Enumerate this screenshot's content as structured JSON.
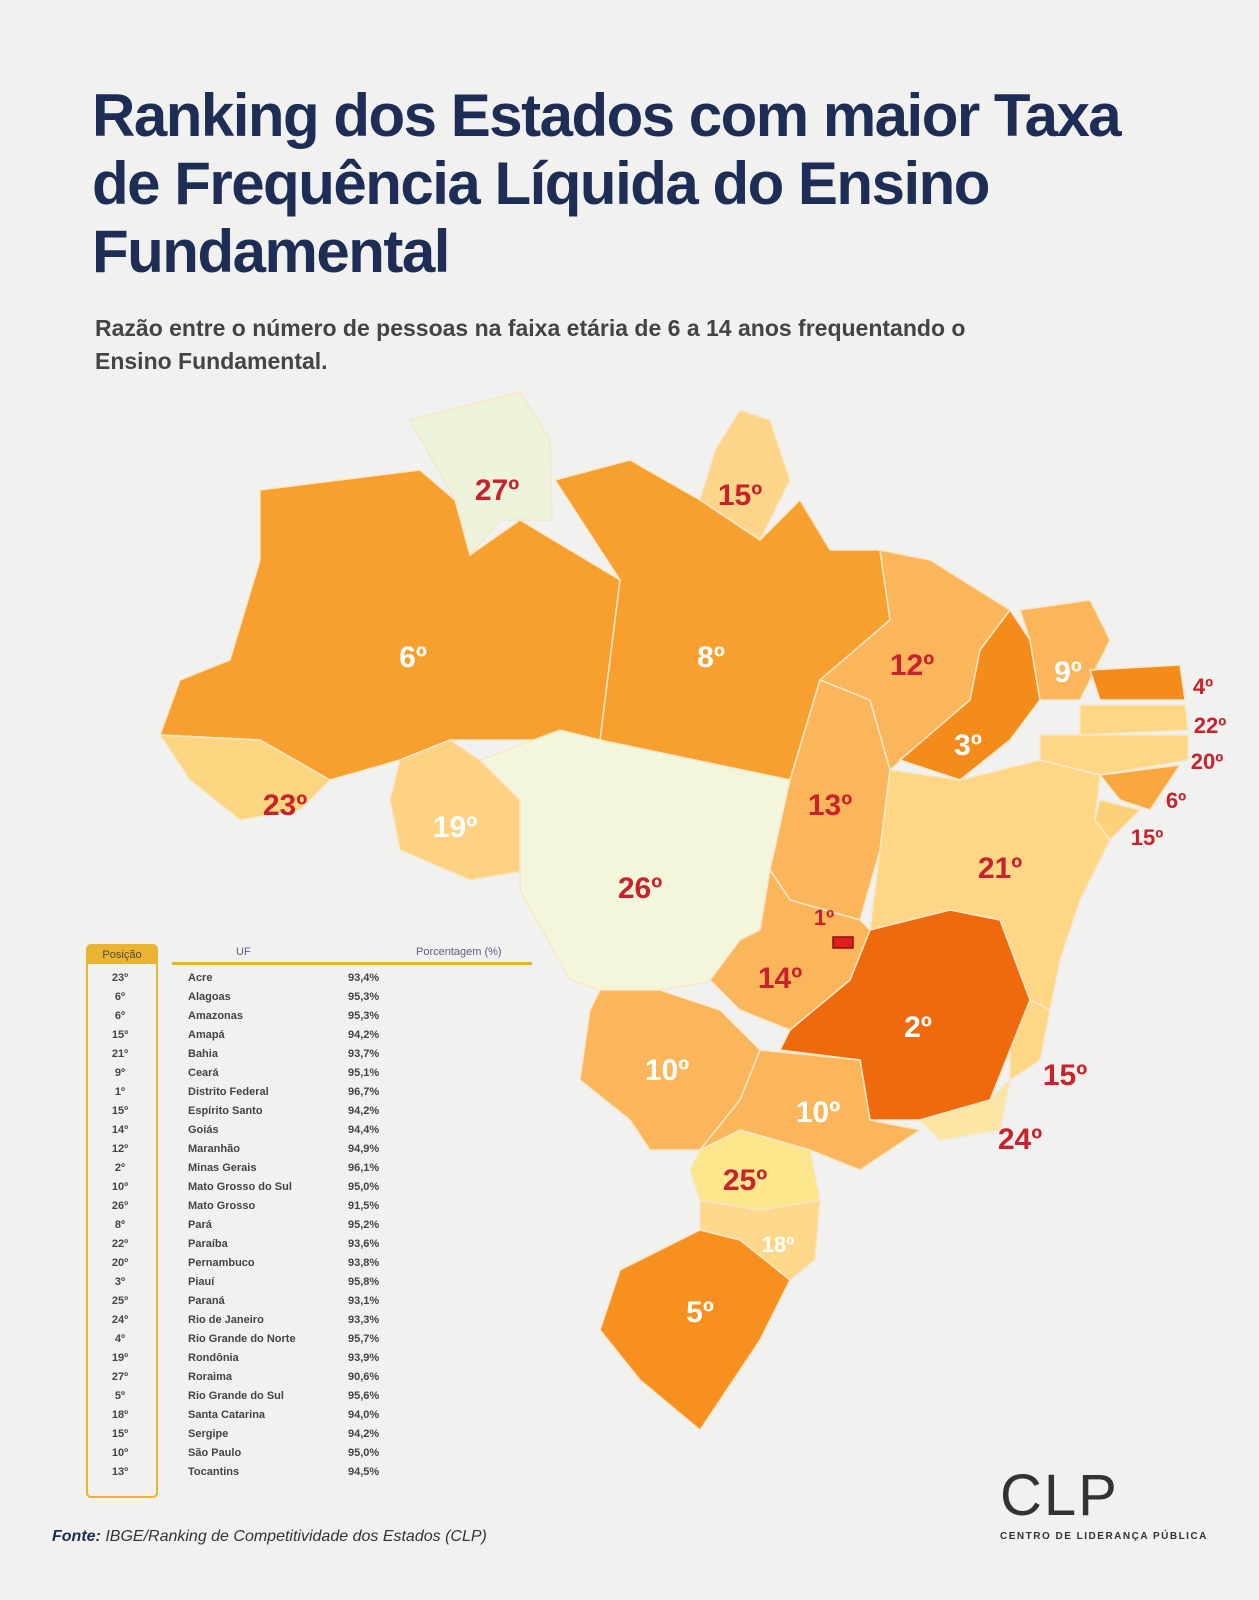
{
  "title": "Ranking dos Estados com maior Taxa de Frequência Líquida do Ensino Fundamental",
  "subtitle": "Razão entre o número de pessoas na faixa etária de 6 a 14 anos frequentando o Ensino Fundamental.",
  "map": {
    "RR": {
      "rank": "27º",
      "fill": "#eef3dc"
    },
    "AP": {
      "rank": "15º",
      "fill": "#fcd58a"
    },
    "AM": {
      "rank": "6º",
      "fill": "#f7a030"
    },
    "PA": {
      "rank": "8º",
      "fill": "#f7a030"
    },
    "AC": {
      "rank": "23º",
      "fill": "#fcd580"
    },
    "RO": {
      "rank": "19º",
      "fill": "#fdd282"
    },
    "MT": {
      "rank": "26º",
      "fill": "#f3f6da"
    },
    "MA": {
      "rank": "12º",
      "fill": "#fbb55a"
    },
    "PI": {
      "rank": "3º",
      "fill": "#f48c1c"
    },
    "CE": {
      "rank": "9º",
      "fill": "#fbb55a"
    },
    "RN": {
      "rank": "4º",
      "fill": "#f48c1c"
    },
    "PB": {
      "rank": "22º",
      "fill": "#fdd785"
    },
    "PE": {
      "rank": "20º",
      "fill": "#fdd785"
    },
    "AL": {
      "rank": "6º",
      "fill": "#f9a840"
    },
    "SE": {
      "rank": "15º",
      "fill": "#fdd07a"
    },
    "TO": {
      "rank": "13º",
      "fill": "#fbb55a"
    },
    "BA": {
      "rank": "21º",
      "fill": "#fdd785"
    },
    "GO": {
      "rank": "14º",
      "fill": "#fbb55a"
    },
    "DF": {
      "rank": "1º",
      "fill": "#e0201c"
    },
    "MG": {
      "rank": "2º",
      "fill": "#ee6a0c"
    },
    "ES": {
      "rank": "15º",
      "fill": "#fdd785"
    },
    "RJ": {
      "rank": "24º",
      "fill": "#fce6a4"
    },
    "MS": {
      "rank": "10º",
      "fill": "#fbb55a"
    },
    "SP": {
      "rank": "10º",
      "fill": "#fbb55a"
    },
    "PR": {
      "rank": "25º",
      "fill": "#fbe68c"
    },
    "SC": {
      "rank": "18º",
      "fill": "#fdd78a"
    },
    "RS": {
      "rank": "5º",
      "fill": "#f7901e"
    }
  },
  "table": {
    "headers": {
      "position": "Posição",
      "uf": "UF",
      "percent": "Porcentagem (%)"
    },
    "rows": [
      {
        "pos": "23º",
        "uf": "Acre",
        "pct": "93,4%"
      },
      {
        "pos": "6º",
        "uf": "Alagoas",
        "pct": "95,3%"
      },
      {
        "pos": "6º",
        "uf": "Amazonas",
        "pct": "95,3%"
      },
      {
        "pos": "15º",
        "uf": "Amapá",
        "pct": "94,2%"
      },
      {
        "pos": "21º",
        "uf": "Bahia",
        "pct": "93,7%"
      },
      {
        "pos": "9º",
        "uf": "Ceará",
        "pct": "95,1%"
      },
      {
        "pos": "1º",
        "uf": "Distrito Federal",
        "pct": "96,7%"
      },
      {
        "pos": "15º",
        "uf": "Espírito Santo",
        "pct": "94,2%"
      },
      {
        "pos": "14º",
        "uf": "Goiás",
        "pct": "94,4%"
      },
      {
        "pos": "12º",
        "uf": "Maranhão",
        "pct": "94,9%"
      },
      {
        "pos": "2º",
        "uf": "Minas Gerais",
        "pct": "96,1%"
      },
      {
        "pos": "10º",
        "uf": "Mato Grosso do Sul",
        "pct": "95,0%"
      },
      {
        "pos": "26º",
        "uf": "Mato Grosso",
        "pct": "91,5%"
      },
      {
        "pos": "8º",
        "uf": "Pará",
        "pct": "95,2%"
      },
      {
        "pos": "22º",
        "uf": "Paraíba",
        "pct": "93,6%"
      },
      {
        "pos": "20º",
        "uf": "Pernambuco",
        "pct": "93,8%"
      },
      {
        "pos": "3º",
        "uf": "Piauí",
        "pct": "95,8%"
      },
      {
        "pos": "25º",
        "uf": "Paraná",
        "pct": "93,1%"
      },
      {
        "pos": "24º",
        "uf": "Rio de Janeiro",
        "pct": "93,3%"
      },
      {
        "pos": "4º",
        "uf": "Rio Grande do Norte",
        "pct": "95,7%"
      },
      {
        "pos": "19º",
        "uf": "Rondônia",
        "pct": "93,9%"
      },
      {
        "pos": "27º",
        "uf": "Roraima",
        "pct": "90,6%"
      },
      {
        "pos": "5º",
        "uf": "Rio Grande do Sul",
        "pct": "95,6%"
      },
      {
        "pos": "18º",
        "uf": "Santa Catarina",
        "pct": "94,0%"
      },
      {
        "pos": "15º",
        "uf": "Sergipe",
        "pct": "94,2%"
      },
      {
        "pos": "10º",
        "uf": "São Paulo",
        "pct": "95,0%"
      },
      {
        "pos": "13º",
        "uf": "Tocantins",
        "pct": "94,5%"
      }
    ]
  },
  "source": {
    "label": "Fonte:",
    "text": "IBGE/Ranking de Competitividade dos Estados (CLP)"
  },
  "logo": {
    "mark": "CLP",
    "tagline": "CENTRO DE LIDERANÇA PÚBLICA"
  }
}
